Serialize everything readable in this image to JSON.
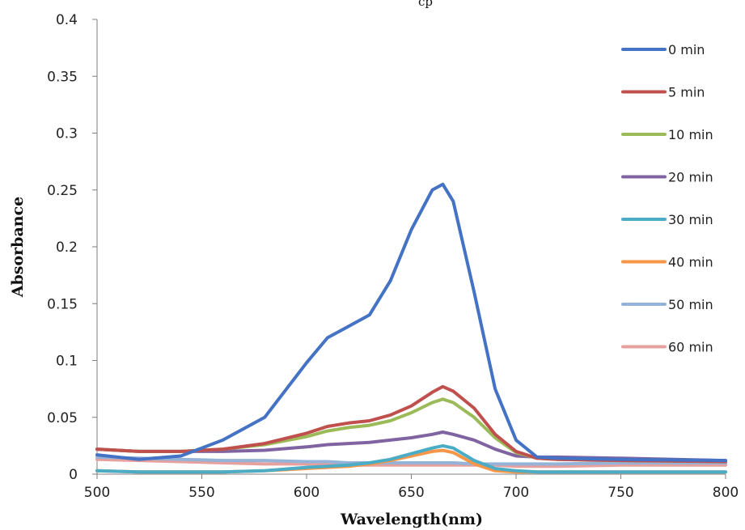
{
  "chart_data": {
    "type": "line",
    "title": "",
    "top_text_fragment": "cp",
    "xlabel": "Wavelength(nm)",
    "ylabel": "Absorbance",
    "xlim": [
      500,
      800
    ],
    "ylim": [
      0,
      0.4
    ],
    "x_ticks": [
      "500",
      "550",
      "600",
      "650",
      "700",
      "750",
      "800"
    ],
    "y_ticks": [
      "0",
      "0.05",
      "0.1",
      "0.15",
      "0.2",
      "0.25",
      "0.3",
      "0.35",
      "0.4"
    ],
    "grid": false,
    "legend_position": "right",
    "x": [
      500,
      520,
      540,
      560,
      580,
      600,
      610,
      620,
      630,
      640,
      650,
      660,
      665,
      670,
      680,
      690,
      700,
      710,
      720,
      750,
      800
    ],
    "series": [
      {
        "name": "0 min",
        "color": "#4472C4",
        "values": [
          0.017,
          0.013,
          0.016,
          0.03,
          0.05,
          0.098,
          0.12,
          0.13,
          0.14,
          0.17,
          0.215,
          0.25,
          0.255,
          0.24,
          0.16,
          0.075,
          0.03,
          0.015,
          0.014,
          0.013,
          0.012
        ]
      },
      {
        "name": "5 min",
        "color": "#C0504D",
        "values": [
          0.022,
          0.02,
          0.02,
          0.022,
          0.027,
          0.036,
          0.042,
          0.045,
          0.047,
          0.052,
          0.06,
          0.072,
          0.077,
          0.073,
          0.058,
          0.035,
          0.02,
          0.014,
          0.013,
          0.012,
          0.011
        ]
      },
      {
        "name": "10 min",
        "color": "#9BBB59",
        "values": [
          0.022,
          0.02,
          0.02,
          0.022,
          0.026,
          0.033,
          0.038,
          0.041,
          0.043,
          0.047,
          0.054,
          0.063,
          0.066,
          0.063,
          0.05,
          0.032,
          0.019,
          0.014,
          0.013,
          0.012,
          0.011
        ]
      },
      {
        "name": "20 min",
        "color": "#8064A2",
        "values": [
          0.022,
          0.02,
          0.02,
          0.02,
          0.021,
          0.024,
          0.026,
          0.027,
          0.028,
          0.03,
          0.032,
          0.035,
          0.037,
          0.035,
          0.03,
          0.022,
          0.016,
          0.015,
          0.015,
          0.014,
          0.012
        ]
      },
      {
        "name": "30 min",
        "color": "#4BACC6",
        "values": [
          0.003,
          0.002,
          0.002,
          0.002,
          0.003,
          0.006,
          0.007,
          0.008,
          0.01,
          0.013,
          0.018,
          0.023,
          0.025,
          0.023,
          0.012,
          0.005,
          0.003,
          0.002,
          0.002,
          0.002,
          0.002
        ]
      },
      {
        "name": "40 min",
        "color": "#F79646",
        "values": [
          0.003,
          0.002,
          0.002,
          0.002,
          0.003,
          0.005,
          0.006,
          0.007,
          0.009,
          0.012,
          0.016,
          0.02,
          0.021,
          0.019,
          0.009,
          0.003,
          0.002,
          0.002,
          0.002,
          0.002,
          0.002
        ]
      },
      {
        "name": "50 min",
        "color": "#95B3D7",
        "values": [
          0.015,
          0.014,
          0.013,
          0.012,
          0.012,
          0.011,
          0.011,
          0.01,
          0.01,
          0.01,
          0.01,
          0.01,
          0.01,
          0.01,
          0.009,
          0.009,
          0.009,
          0.009,
          0.009,
          0.01,
          0.01
        ]
      },
      {
        "name": "60 min",
        "color": "#E6A09E",
        "values": [
          0.013,
          0.012,
          0.011,
          0.01,
          0.009,
          0.009,
          0.009,
          0.008,
          0.008,
          0.008,
          0.008,
          0.008,
          0.008,
          0.008,
          0.008,
          0.008,
          0.007,
          0.007,
          0.007,
          0.008,
          0.008
        ]
      }
    ]
  }
}
